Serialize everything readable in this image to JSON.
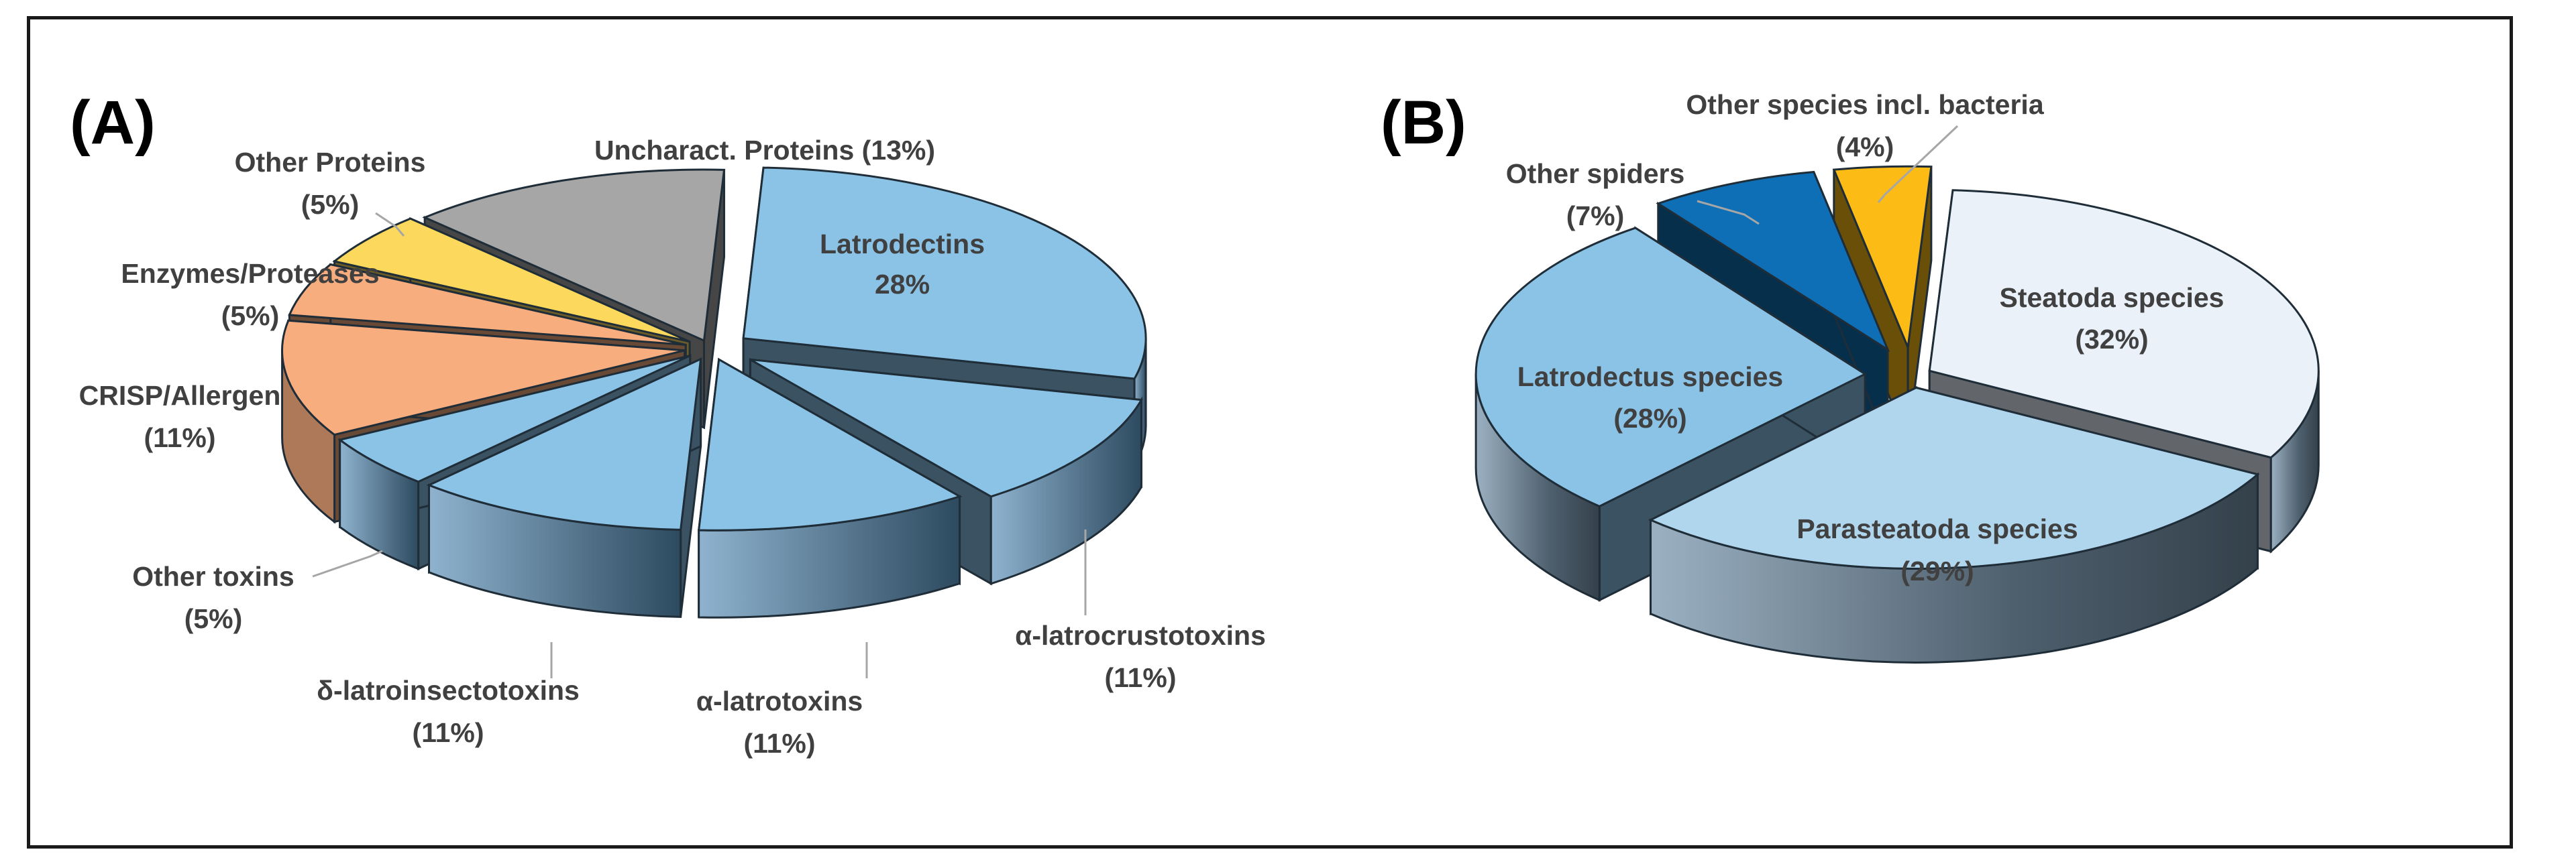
{
  "colors": {
    "light_blue": "#8bc3e6",
    "orange": "#f8ad7f",
    "yellow": "#fcd95c",
    "gray": "#a6a6a6",
    "pale": "#eaf1f9",
    "pale_blue": "#b0d6ee",
    "dark_blue": "#0e6fb6",
    "gold": "#fdbb16"
  },
  "chart_data": [
    {
      "type": "pie",
      "panel_label": "(A)",
      "slices": [
        {
          "label": "Latrodectins",
          "value": 28,
          "pct_text": "28%",
          "color": "light_blue"
        },
        {
          "label": "α-latrocrustotoxins",
          "value": 11,
          "pct_text": "(11%)",
          "color": "light_blue"
        },
        {
          "label": "α-latrotoxins",
          "value": 11,
          "pct_text": "(11%)",
          "color": "light_blue"
        },
        {
          "label": "δ-latroinsectotoxins",
          "value": 11,
          "pct_text": "(11%)",
          "color": "light_blue"
        },
        {
          "label": "Other toxins",
          "value": 5,
          "pct_text": "(5%)",
          "color": "light_blue"
        },
        {
          "label": "CRISP/Allergen",
          "value": 11,
          "pct_text": "(11%)",
          "color": "orange"
        },
        {
          "label": "Enzymes/Proteases",
          "value": 5,
          "pct_text": "(5%)",
          "color": "orange"
        },
        {
          "label": "Other Proteins",
          "value": 5,
          "pct_text": "(5%)",
          "color": "yellow"
        },
        {
          "label": "Uncharact. Proteins (13%)",
          "value": 13,
          "pct_text": "",
          "color": "gray"
        }
      ]
    },
    {
      "type": "pie",
      "panel_label": "(B)",
      "slices": [
        {
          "label": "Steatoda species",
          "value": 32,
          "pct_text": "(32%)",
          "color": "pale"
        },
        {
          "label": "Parasteatoda species",
          "value": 29,
          "pct_text": "(29%)",
          "color": "pale_blue"
        },
        {
          "label": "Latrodectus species",
          "value": 28,
          "pct_text": "(28%)",
          "color": "light_blue"
        },
        {
          "label": "Other spiders",
          "value": 7,
          "pct_text": "(7%)",
          "color": "dark_blue"
        },
        {
          "label": "Other species incl. bacteria",
          "value": 4,
          "pct_text": "(4%)",
          "color": "gold"
        }
      ]
    }
  ]
}
